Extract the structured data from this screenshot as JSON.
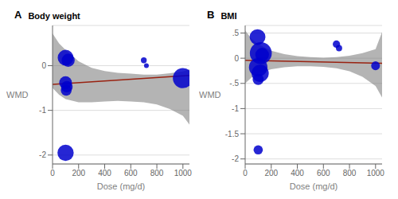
{
  "chart_data": [
    {
      "type": "scatter",
      "panel_label": "A",
      "title": "Body weight",
      "x_label": "Dose (mg/d)",
      "y_label": "WMD",
      "xlim": [
        0,
        1050
      ],
      "ylim": [
        -2.2,
        0.9
      ],
      "xticks": [
        0,
        200,
        400,
        600,
        800,
        1000
      ],
      "yticks": [
        -2,
        -1,
        0
      ],
      "grid": true,
      "series": [
        {
          "type": "area",
          "color": "#777777",
          "x": [
            0,
            50,
            100,
            200,
            300,
            400,
            500,
            600,
            700,
            800,
            900,
            1000,
            1050
          ],
          "upper": [
            0.72,
            0.5,
            0.35,
            0.1,
            -0.05,
            -0.12,
            -0.16,
            -0.18,
            -0.2,
            -0.2,
            -0.17,
            -0.13,
            -0.08
          ],
          "lower": [
            -0.5,
            -0.65,
            -0.75,
            -0.82,
            -0.82,
            -0.8,
            -0.79,
            -0.8,
            -0.82,
            -0.87,
            -0.97,
            -1.12,
            -1.32
          ]
        },
        {
          "type": "line",
          "color": "#992211",
          "x": [
            0,
            1050
          ],
          "values": [
            -0.42,
            -0.22
          ]
        },
        {
          "type": "scatter",
          "color": "#0000cc",
          "x": [
            100,
            120,
            100,
            110,
            105,
            700,
            720,
            1000,
            100
          ],
          "values": [
            0.18,
            0.12,
            -0.38,
            -0.47,
            -0.55,
            0.12,
            0.0,
            -0.28,
            -1.95
          ],
          "size": [
            160,
            110,
            105,
            85,
            75,
            22,
            15,
            260,
            170
          ]
        }
      ]
    },
    {
      "type": "scatter",
      "panel_label": "B",
      "title": "BMI",
      "x_label": "Dose (mg/d)",
      "y_label": "WMD",
      "xlim": [
        0,
        1050
      ],
      "ylim": [
        -2.1,
        0.65
      ],
      "xticks": [
        0,
        200,
        400,
        600,
        800,
        1000
      ],
      "yticks": [
        -2,
        -1.5,
        -1,
        {
          "value": -0.5,
          "label": "-.5"
        },
        0,
        {
          "value": 0.5,
          "label": ".5"
        }
      ],
      "grid": true,
      "series": [
        {
          "type": "area",
          "color": "#777777",
          "x": [
            0,
            50,
            100,
            200,
            300,
            400,
            500,
            600,
            700,
            800,
            900,
            1000,
            1050
          ],
          "upper": [
            0.55,
            0.38,
            0.28,
            0.15,
            0.08,
            0.04,
            0.02,
            0.01,
            0.02,
            0.05,
            0.1,
            0.18,
            0.52
          ],
          "lower": [
            -0.5,
            -0.38,
            -0.3,
            -0.22,
            -0.18,
            -0.16,
            -0.16,
            -0.17,
            -0.2,
            -0.26,
            -0.37,
            -0.55,
            -0.78
          ]
        },
        {
          "type": "line",
          "color": "#992211",
          "x": [
            0,
            1050
          ],
          "values": [
            -0.04,
            -0.1
          ]
        },
        {
          "type": "scatter",
          "color": "#0000cc",
          "x": [
            95,
            120,
            130,
            100,
            115,
            100,
            700,
            720,
            1000,
            100
          ],
          "values": [
            0.42,
            0.1,
            0.07,
            -0.18,
            -0.3,
            -0.42,
            0.28,
            0.2,
            -0.15,
            -1.82
          ],
          "size": [
            160,
            310,
            120,
            220,
            190,
            80,
            35,
            25,
            50,
            55
          ]
        }
      ]
    }
  ]
}
